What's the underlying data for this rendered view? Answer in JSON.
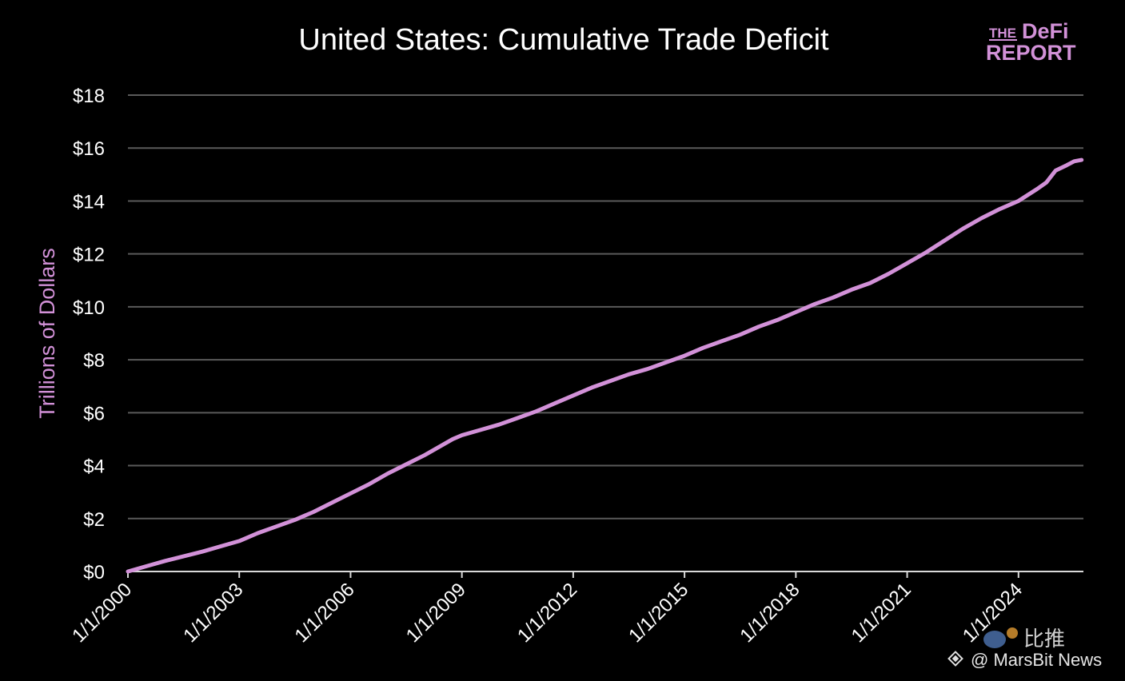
{
  "colors": {
    "background": "#000000",
    "line": "#d291d8",
    "grid": "#5a5a5a",
    "axis": "#d9d9d9",
    "text": "#ffffff",
    "accent": "#d291d8"
  },
  "logo": {
    "line1_small": "THE",
    "line1_big": "DeFi",
    "line2": "REPORT"
  },
  "watermark": {
    "brand_cn": "比推",
    "news": "@ MarsBit News",
    "binance_icon": "binance-diamond-icon",
    "bird_icon": "bird-icon"
  },
  "chart_data": {
    "type": "line",
    "title": "United States: Cumulative Trade Deficit",
    "xlabel": "",
    "ylabel": "Trillions of Dollars",
    "ylim": [
      0,
      18
    ],
    "xlim": [
      2000.0,
      2025.75
    ],
    "yticks": [
      0,
      2,
      4,
      6,
      8,
      10,
      12,
      14,
      16,
      18
    ],
    "ytick_labels": [
      "$0",
      "$2",
      "$4",
      "$6",
      "$8",
      "$10",
      "$12",
      "$14",
      "$16",
      "$18"
    ],
    "xticks": [
      2000,
      2003,
      2006,
      2009,
      2012,
      2015,
      2018,
      2021,
      2024
    ],
    "xtick_labels": [
      "1/1/2000",
      "1/1/2003",
      "1/1/2006",
      "1/1/2009",
      "1/1/2012",
      "1/1/2015",
      "1/1/2018",
      "1/1/2021",
      "1/1/2024"
    ],
    "grid": true,
    "legend": "none",
    "series": [
      {
        "x": [
          2000.0,
          2000.5,
          2001.0,
          2002.0,
          2002.5,
          2003.0,
          2003.5,
          2004.0,
          2004.5,
          2005.0,
          2005.5,
          2006.0,
          2006.5,
          2007.0,
          2007.5,
          2008.0,
          2008.5,
          2008.75,
          2009.0,
          2009.5,
          2010.0,
          2010.5,
          2011.0,
          2011.5,
          2012.0,
          2012.5,
          2013.0,
          2013.5,
          2014.0,
          2014.5,
          2015.0,
          2015.5,
          2016.0,
          2016.5,
          2017.0,
          2017.5,
          2018.0,
          2018.5,
          2019.0,
          2019.5,
          2020.0,
          2020.5,
          2021.0,
          2021.5,
          2022.0,
          2022.5,
          2023.0,
          2023.5,
          2024.0,
          2024.5,
          2024.75,
          2025.0,
          2025.3,
          2025.5,
          2025.7
        ],
        "y": [
          0.0,
          0.2,
          0.4,
          0.75,
          0.95,
          1.15,
          1.45,
          1.7,
          1.95,
          2.25,
          2.6,
          2.95,
          3.3,
          3.7,
          4.05,
          4.4,
          4.8,
          5.0,
          5.15,
          5.35,
          5.55,
          5.8,
          6.05,
          6.35,
          6.65,
          6.95,
          7.2,
          7.45,
          7.65,
          7.9,
          8.15,
          8.45,
          8.7,
          8.95,
          9.25,
          9.5,
          9.8,
          10.1,
          10.35,
          10.65,
          10.9,
          11.25,
          11.65,
          12.05,
          12.5,
          12.95,
          13.35,
          13.7,
          14.0,
          14.45,
          14.7,
          15.15,
          15.35,
          15.5,
          15.55
        ]
      }
    ]
  }
}
